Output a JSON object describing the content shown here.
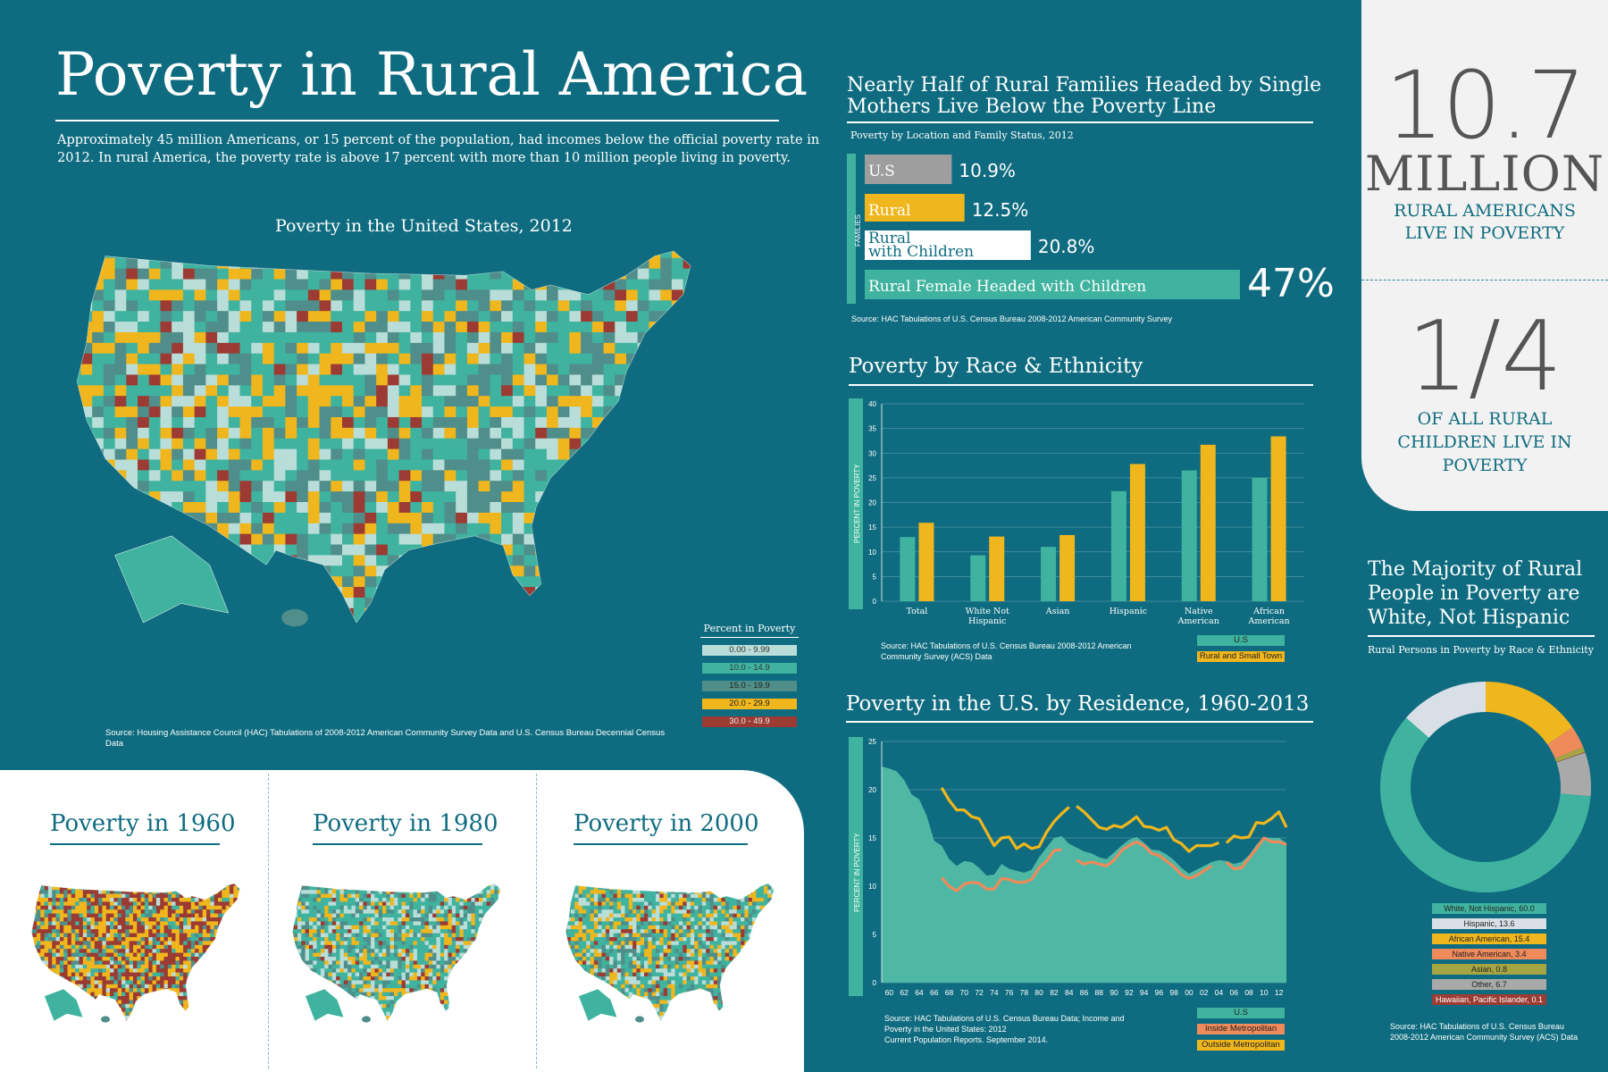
{
  "header": {
    "title": "Poverty in Rural America",
    "intro": "Approximately 45 million Americans, or 15 percent of the population, had incomes below the official poverty rate in 2012. In rural America, the poverty rate is above 17 percent with more than 10 million people living in poverty."
  },
  "main_map": {
    "title": "Poverty in the United States, 2012",
    "legend_title": "Percent in Poverty",
    "legend": [
      {
        "label": "0.00 - 9.99",
        "color": "#b9ddd8"
      },
      {
        "label": "10.0 - 14.9",
        "color": "#3fb39f"
      },
      {
        "label": "15.0 - 19.9",
        "color": "#4f8e8a"
      },
      {
        "label": "20.0 - 29.9",
        "color": "#f0b61d"
      },
      {
        "label": "30.0 - 49.9",
        "color": "#9b3b33"
      }
    ],
    "source": "Source: Housing Assistance Council (HAC) Tabulations of 2008-2012 American Community Survey Data and U.S. Census Bureau Decennial Census Data"
  },
  "historic_maps": {
    "m1960": "Poverty in 1960",
    "m1980": "Poverty in 1980",
    "m2000": "Poverty in 2000"
  },
  "families": {
    "title": "Nearly Half of Rural Families Headed by Single Mothers Live Below the Poverty Line",
    "subtitle": "Poverty by Location and Family Status, 2012",
    "axis_label": "FAMILIES",
    "source": "Source: HAC Tabulations of U.S. Census Bureau 2008-2012 American Community Survey"
  },
  "race": {
    "title": "Poverty by Race & Ethnicity",
    "ylabel": "PERCENT IN POVERTY",
    "source": "Source: HAC Tabulations of U.S. Census Bureau 2008-2012 American Community Survey (ACS) Data",
    "legend_us": "U.S",
    "legend_rural": "Rural and Small Town"
  },
  "residence": {
    "title": "Poverty in the U.S. by Residence, 1960-2013",
    "ylabel": "PERCENT IN POVERTY",
    "source_l1": "Source: HAC Tabulations of U.S. Census Bureau Data; Income and",
    "source_l2": "Poverty in the United States: 2012",
    "source_l3": "Current Population Reports. September 2014.",
    "legend_us": "U.S",
    "legend_inside": "Inside Metropolitan",
    "legend_outside": "Outside Metropolitan"
  },
  "stats": {
    "big1": "10.7",
    "big1_unit": "MILLION",
    "big1_caption_l1": "RURAL AMERICANS",
    "big1_caption_l2": "LIVE IN POVERTY",
    "big2": "1/4",
    "big2_caption_l1": "OF ALL  RURAL",
    "big2_caption_l2": "CHILDREN LIVE IN",
    "big2_caption_l3": "POVERTY"
  },
  "donut": {
    "title_l1": "The Majority of Rural",
    "title_l2": "People in Poverty are",
    "title_l3": "White, Not Hispanic",
    "subtitle": "Rural Persons in Poverty by Race & Ethnicity",
    "source_l1": "Source: HAC Tabulations of U.S. Census Bureau",
    "source_l2": "2008-2012 American Community Survey (ACS) Data"
  },
  "chart_data": [
    {
      "type": "bar",
      "title": "Nearly Half of Rural Families Headed by Single Mothers Live Below the Poverty Line",
      "subtitle": "Poverty by Location and Family Status, 2012",
      "orientation": "horizontal",
      "categories": [
        "U.S",
        "Rural",
        "Rural with Children",
        "Rural Female Headed with Children"
      ],
      "values": [
        10.9,
        12.5,
        20.8,
        47
      ],
      "value_labels": [
        "10.9%",
        "12.5%",
        "20.8%",
        "47%"
      ],
      "colors": [
        "#9e9e9e",
        "#f0b61d",
        "#ffffff",
        "#3fb39f"
      ]
    },
    {
      "type": "bar",
      "title": "Poverty by Race & Ethnicity",
      "ylabel": "PERCENT IN POVERTY",
      "ylim": [
        0,
        40
      ],
      "yticks": [
        0,
        5,
        10,
        15,
        20,
        25,
        30,
        35,
        40
      ],
      "categories": [
        "Total",
        "White Not Hispanic",
        "Asian",
        "Hispanic",
        "Native American",
        "African American"
      ],
      "series": [
        {
          "name": "U.S",
          "color": "#3fb39f",
          "values": [
            13,
            9.3,
            11,
            22.3,
            26.5,
            25
          ]
        },
        {
          "name": "Rural and Small Town",
          "color": "#f0b61d",
          "values": [
            15.9,
            13.1,
            13.4,
            27.8,
            31.7,
            33.4
          ]
        }
      ]
    },
    {
      "type": "area",
      "title": "Poverty in the U.S. by Residence, 1960-2013",
      "ylabel": "PERCENT IN POVERTY",
      "ylim": [
        0,
        25
      ],
      "yticks": [
        0,
        5,
        10,
        15,
        20,
        25
      ],
      "xlim": [
        1959,
        2013
      ],
      "xticks": [
        "60",
        "62",
        "64",
        "66",
        "68",
        "70",
        "72",
        "74",
        "76",
        "78",
        "80",
        "82",
        "84",
        "86",
        "88",
        "90",
        "92",
        "94",
        "96",
        "98",
        "00",
        "02",
        "04",
        "06",
        "08",
        "10",
        "12"
      ],
      "series": [
        {
          "name": "U.S",
          "color": "#4fb8a5",
          "points": [
            [
              1959,
              22.4
            ],
            [
              1960,
              22.2
            ],
            [
              1961,
              21.9
            ],
            [
              1962,
              21
            ],
            [
              1963,
              19.5
            ],
            [
              1964,
              19
            ],
            [
              1965,
              17.3
            ],
            [
              1966,
              14.7
            ],
            [
              1967,
              14.2
            ],
            [
              1968,
              12.8
            ],
            [
              1969,
              12.1
            ],
            [
              1970,
              12.6
            ],
            [
              1971,
              12.5
            ],
            [
              1972,
              11.9
            ],
            [
              1973,
              11.1
            ],
            [
              1974,
              11.2
            ],
            [
              1975,
              12.3
            ],
            [
              1976,
              11.8
            ],
            [
              1977,
              11.6
            ],
            [
              1978,
              11.4
            ],
            [
              1979,
              11.7
            ],
            [
              1980,
              13
            ],
            [
              1981,
              14
            ],
            [
              1982,
              15
            ],
            [
              1983,
              15.2
            ],
            [
              1984,
              14.4
            ],
            [
              1985,
              14
            ],
            [
              1986,
              13.6
            ],
            [
              1987,
              13.4
            ],
            [
              1988,
              13
            ],
            [
              1989,
              12.8
            ],
            [
              1990,
              13.5
            ],
            [
              1991,
              14.2
            ],
            [
              1992,
              14.8
            ],
            [
              1993,
              15.1
            ],
            [
              1994,
              14.5
            ],
            [
              1995,
              13.8
            ],
            [
              1996,
              13.7
            ],
            [
              1997,
              13.3
            ],
            [
              1998,
              12.7
            ],
            [
              1999,
              11.9
            ],
            [
              2000,
              11.3
            ],
            [
              2001,
              11.7
            ],
            [
              2002,
              12.1
            ],
            [
              2003,
              12.5
            ],
            [
              2004,
              12.7
            ],
            [
              2005,
              12.6
            ],
            [
              2006,
              12.3
            ],
            [
              2007,
              12.5
            ],
            [
              2008,
              13.2
            ],
            [
              2009,
              14.3
            ],
            [
              2010,
              15.1
            ],
            [
              2011,
              15
            ],
            [
              2012,
              15
            ],
            [
              2013,
              14.5
            ]
          ]
        },
        {
          "name": "Inside Metropolitan",
          "color": "#ef8a5a",
          "segments": [
            [
              [
                1967,
                10.9
              ],
              [
                1968,
                10
              ],
              [
                1969,
                9.5
              ],
              [
                1970,
                10.2
              ],
              [
                1971,
                10.4
              ],
              [
                1972,
                10.3
              ],
              [
                1973,
                9.7
              ],
              [
                1974,
                9.7
              ],
              [
                1975,
                10.8
              ],
              [
                1976,
                10.7
              ],
              [
                1977,
                10.4
              ],
              [
                1978,
                10.4
              ],
              [
                1979,
                10.7
              ],
              [
                1980,
                11.9
              ],
              [
                1981,
                12.6
              ],
              [
                1982,
                13.7
              ],
              [
                1983,
                13.8
              ]
            ],
            [
              [
                1985,
                12.7
              ],
              [
                1986,
                12.3
              ],
              [
                1987,
                12.5
              ],
              [
                1988,
                12.3
              ],
              [
                1989,
                12.1
              ],
              [
                1990,
                12.7
              ],
              [
                1991,
                13.7
              ],
              [
                1992,
                14.2
              ],
              [
                1993,
                14.6
              ],
              [
                1994,
                14.2
              ],
              [
                1995,
                13.4
              ],
              [
                1996,
                13.2
              ],
              [
                1997,
                12.6
              ],
              [
                1998,
                12
              ],
              [
                1999,
                11.2
              ],
              [
                2000,
                10.8
              ],
              [
                2001,
                11.1
              ],
              [
                2002,
                11.6
              ],
              [
                2003,
                12.1
              ]
            ],
            [
              [
                2005,
                12.5
              ],
              [
                2006,
                11.8
              ],
              [
                2007,
                11.9
              ],
              [
                2008,
                12.9
              ],
              [
                2009,
                13.9
              ],
              [
                2010,
                15
              ],
              [
                2011,
                14.6
              ],
              [
                2012,
                14.6
              ],
              [
                2013,
                14.3
              ]
            ]
          ]
        },
        {
          "name": "Outside Metropolitan",
          "color": "#f0b61d",
          "segments": [
            [
              [
                1967,
                20.2
              ],
              [
                1968,
                18.9
              ],
              [
                1969,
                17.9
              ],
              [
                1970,
                17.9
              ],
              [
                1971,
                17.2
              ],
              [
                1972,
                17
              ],
              [
                1973,
                15.6
              ],
              [
                1974,
                14.2
              ],
              [
                1975,
                15
              ],
              [
                1976,
                15.1
              ],
              [
                1977,
                13.9
              ],
              [
                1978,
                14.4
              ],
              [
                1979,
                13.9
              ],
              [
                1980,
                14.1
              ],
              [
                1981,
                15.6
              ],
              [
                1982,
                16.7
              ],
              [
                1983,
                17.5
              ],
              [
                1984,
                18.2
              ]
            ],
            [
              [
                1985,
                18.3
              ],
              [
                1986,
                17.7
              ],
              [
                1987,
                16.9
              ],
              [
                1988,
                16.1
              ],
              [
                1989,
                15.9
              ],
              [
                1990,
                16.3
              ],
              [
                1991,
                16.1
              ],
              [
                1992,
                16.6
              ],
              [
                1993,
                17.2
              ],
              [
                1994,
                16.2
              ],
              [
                1995,
                16.1
              ],
              [
                1996,
                15.8
              ],
              [
                1997,
                16.1
              ],
              [
                1998,
                14.8
              ],
              [
                1999,
                14.4
              ],
              [
                2000,
                13.6
              ],
              [
                2001,
                14.2
              ],
              [
                2002,
                14.2
              ],
              [
                2003,
                14.2
              ],
              [
                2004,
                14.5
              ]
            ],
            [
              [
                2005,
                14.5
              ],
              [
                2006,
                15.2
              ],
              [
                2007,
                15
              ],
              [
                2008,
                15.1
              ],
              [
                2009,
                16.6
              ],
              [
                2010,
                16.5
              ],
              [
                2011,
                17
              ],
              [
                2012,
                17.7
              ],
              [
                2013,
                16.1
              ]
            ]
          ]
        }
      ]
    },
    {
      "type": "pie",
      "title": "The Majority of Rural People in Poverty are White, Not Hispanic",
      "subtitle": "Rural Persons in Poverty by Race & Ethnicity",
      "donut": true,
      "slices": [
        {
          "label": "White, Not Hispanic, 60.0",
          "value": 60.0,
          "color": "#3fb39f"
        },
        {
          "label": "Hispanic, 13.6",
          "value": 13.6,
          "color": "#d8dfe6"
        },
        {
          "label": "African American, 15.4",
          "value": 15.4,
          "color": "#f0b61d"
        },
        {
          "label": "Native American, 3.4",
          "value": 3.4,
          "color": "#ef8a5a"
        },
        {
          "label": "Asian, 0.8",
          "value": 0.8,
          "color": "#a6a544"
        },
        {
          "label": "Other, 6.7",
          "value": 6.7,
          "color": "#a9a9a9"
        },
        {
          "label": "Hawaiian, Pacific Islander, 0.1",
          "value": 0.1,
          "color": "#9b3b33"
        }
      ]
    }
  ]
}
